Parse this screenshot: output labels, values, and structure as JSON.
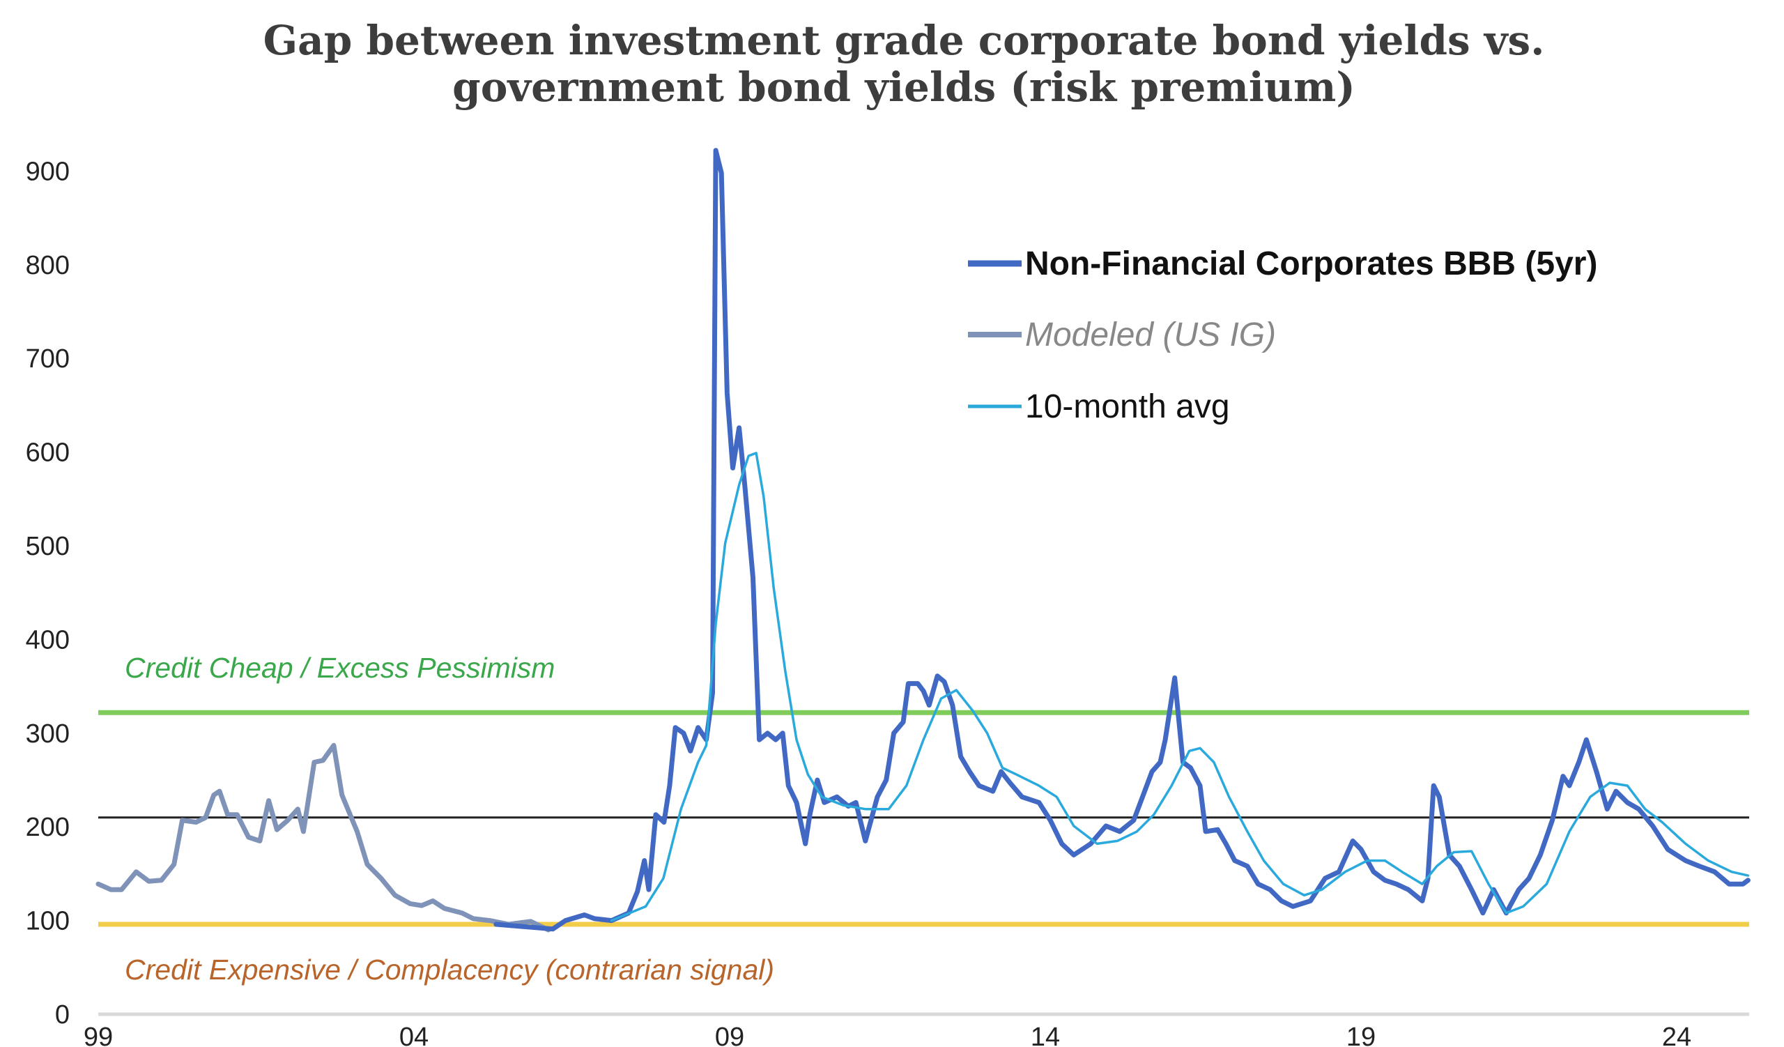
{
  "chart_data": {
    "type": "line",
    "title": [
      "Gap between investment grade corporate bond yields vs.",
      "government bond yields (risk premium)"
    ],
    "xlabel": "",
    "ylabel": "",
    "xlim": [
      1999,
      2025.15
    ],
    "ylim": [
      0,
      950
    ],
    "y_ticks": [
      0,
      100,
      200,
      300,
      400,
      500,
      600,
      700,
      800,
      900
    ],
    "x_ticks": [
      {
        "value": 1999,
        "label": "99"
      },
      {
        "value": 2004,
        "label": "04"
      },
      {
        "value": 2009,
        "label": "09"
      },
      {
        "value": 2014,
        "label": "14"
      },
      {
        "value": 2019,
        "label": "19"
      },
      {
        "value": 2024,
        "label": "24"
      }
    ],
    "grid": false,
    "legend_position": "top-right",
    "reference_lines": [
      {
        "name": "credit-cheap-line",
        "value": 322,
        "color": "#7fcc5a"
      },
      {
        "name": "average-line",
        "value": 210,
        "color": "#222222"
      },
      {
        "name": "credit-expensive-line",
        "value": 96,
        "color": "#f2cd4a"
      }
    ],
    "annotations": [
      {
        "text": "Credit Cheap / Excess Pessimism",
        "color": "#3aa84a"
      },
      {
        "text": "Credit Expensive / Complacency (contrarian signal)",
        "color": "#b8642a"
      }
    ],
    "series": [
      {
        "name": "Modeled (US IG)",
        "color": "#7f93b8",
        "style": "italic",
        "points": [
          [
            1999.0,
            139
          ],
          [
            1999.2,
            133
          ],
          [
            1999.37,
            133
          ],
          [
            1999.6,
            152
          ],
          [
            1999.8,
            142
          ],
          [
            2000.0,
            143
          ],
          [
            2000.2,
            160
          ],
          [
            2000.33,
            207
          ],
          [
            2000.55,
            205
          ],
          [
            2000.7,
            210
          ],
          [
            2000.83,
            234
          ],
          [
            2000.92,
            238
          ],
          [
            2001.05,
            213
          ],
          [
            2001.2,
            213
          ],
          [
            2001.38,
            189
          ],
          [
            2001.56,
            185
          ],
          [
            2001.7,
            228
          ],
          [
            2001.83,
            197
          ],
          [
            2002.0,
            207
          ],
          [
            2002.16,
            219
          ],
          [
            2002.25,
            195
          ],
          [
            2002.42,
            269
          ],
          [
            2002.56,
            271
          ],
          [
            2002.73,
            287
          ],
          [
            2002.86,
            234
          ],
          [
            2003.1,
            195
          ],
          [
            2003.26,
            160
          ],
          [
            2003.48,
            145
          ],
          [
            2003.7,
            127
          ],
          [
            2003.94,
            118
          ],
          [
            2004.12,
            116
          ],
          [
            2004.3,
            121
          ],
          [
            2004.48,
            113
          ],
          [
            2004.76,
            108
          ],
          [
            2004.94,
            102
          ],
          [
            2005.2,
            100
          ],
          [
            2005.5,
            96
          ],
          [
            2005.85,
            99
          ],
          [
            2006.13,
            90
          ]
        ]
      },
      {
        "name": "Non-Financial Corporates BBB (5yr)",
        "color": "#4169c4",
        "style": "bold",
        "points": [
          [
            2005.3,
            96
          ],
          [
            2006.2,
            91
          ],
          [
            2006.4,
            100
          ],
          [
            2006.7,
            106
          ],
          [
            2006.86,
            102
          ],
          [
            2007.13,
            100
          ],
          [
            2007.4,
            108
          ],
          [
            2007.54,
            131
          ],
          [
            2007.65,
            164
          ],
          [
            2007.72,
            133
          ],
          [
            2007.83,
            213
          ],
          [
            2007.96,
            205
          ],
          [
            2008.05,
            244
          ],
          [
            2008.14,
            306
          ],
          [
            2008.27,
            300
          ],
          [
            2008.38,
            281
          ],
          [
            2008.5,
            306
          ],
          [
            2008.63,
            293
          ],
          [
            2008.73,
            343
          ],
          [
            2008.78,
            922
          ],
          [
            2008.87,
            898
          ],
          [
            2008.96,
            663
          ],
          [
            2009.05,
            583
          ],
          [
            2009.15,
            626
          ],
          [
            2009.24,
            565
          ],
          [
            2009.37,
            466
          ],
          [
            2009.47,
            293
          ],
          [
            2009.6,
            300
          ],
          [
            2009.73,
            293
          ],
          [
            2009.84,
            300
          ],
          [
            2009.93,
            244
          ],
          [
            2010.06,
            226
          ],
          [
            2010.2,
            182
          ],
          [
            2010.27,
            213
          ],
          [
            2010.39,
            250
          ],
          [
            2010.5,
            226
          ],
          [
            2010.7,
            232
          ],
          [
            2010.88,
            222
          ],
          [
            2011.0,
            226
          ],
          [
            2011.15,
            185
          ],
          [
            2011.34,
            232
          ],
          [
            2011.48,
            250
          ],
          [
            2011.6,
            300
          ],
          [
            2011.75,
            312
          ],
          [
            2011.83,
            353
          ],
          [
            2011.98,
            353
          ],
          [
            2012.07,
            345
          ],
          [
            2012.16,
            330
          ],
          [
            2012.29,
            361
          ],
          [
            2012.4,
            355
          ],
          [
            2012.53,
            330
          ],
          [
            2012.66,
            275
          ],
          [
            2012.8,
            259
          ],
          [
            2012.95,
            244
          ],
          [
            2013.17,
            238
          ],
          [
            2013.3,
            259
          ],
          [
            2013.44,
            247
          ],
          [
            2013.63,
            232
          ],
          [
            2013.9,
            226
          ],
          [
            2014.08,
            207
          ],
          [
            2014.26,
            182
          ],
          [
            2014.45,
            170
          ],
          [
            2014.72,
            182
          ],
          [
            2014.96,
            201
          ],
          [
            2015.18,
            195
          ],
          [
            2015.4,
            207
          ],
          [
            2015.54,
            232
          ],
          [
            2015.69,
            259
          ],
          [
            2015.82,
            269
          ],
          [
            2015.9,
            293
          ],
          [
            2016.05,
            359
          ],
          [
            2016.18,
            269
          ],
          [
            2016.3,
            263
          ],
          [
            2016.45,
            244
          ],
          [
            2016.54,
            195
          ],
          [
            2016.73,
            197
          ],
          [
            2016.86,
            182
          ],
          [
            2017.0,
            164
          ],
          [
            2017.2,
            158
          ],
          [
            2017.37,
            139
          ],
          [
            2017.56,
            133
          ],
          [
            2017.74,
            121
          ],
          [
            2017.92,
            115
          ],
          [
            2018.2,
            121
          ],
          [
            2018.43,
            145
          ],
          [
            2018.65,
            152
          ],
          [
            2018.87,
            185
          ],
          [
            2019.0,
            176
          ],
          [
            2019.2,
            152
          ],
          [
            2019.38,
            143
          ],
          [
            2019.56,
            139
          ],
          [
            2019.75,
            133
          ],
          [
            2019.97,
            121
          ],
          [
            2020.06,
            145
          ],
          [
            2020.15,
            244
          ],
          [
            2020.24,
            232
          ],
          [
            2020.4,
            170
          ],
          [
            2020.56,
            158
          ],
          [
            2020.75,
            133
          ],
          [
            2020.93,
            108
          ],
          [
            2021.1,
            133
          ],
          [
            2021.3,
            108
          ],
          [
            2021.5,
            133
          ],
          [
            2021.66,
            145
          ],
          [
            2021.84,
            170
          ],
          [
            2022.03,
            207
          ],
          [
            2022.2,
            254
          ],
          [
            2022.3,
            244
          ],
          [
            2022.45,
            269
          ],
          [
            2022.57,
            293
          ],
          [
            2022.73,
            259
          ],
          [
            2022.9,
            219
          ],
          [
            2023.04,
            238
          ],
          [
            2023.22,
            226
          ],
          [
            2023.4,
            219
          ],
          [
            2023.62,
            201
          ],
          [
            2023.86,
            176
          ],
          [
            2024.14,
            164
          ],
          [
            2024.36,
            158
          ],
          [
            2024.6,
            152
          ],
          [
            2024.83,
            139
          ],
          [
            2025.05,
            139
          ],
          [
            2025.13,
            143
          ]
        ]
      },
      {
        "name": "10-month avg",
        "color": "#2aa9dc",
        "style": "normal",
        "points": [
          [
            2007.13,
            100
          ],
          [
            2007.67,
            115
          ],
          [
            2007.95,
            145
          ],
          [
            2008.23,
            219
          ],
          [
            2008.5,
            269
          ],
          [
            2008.63,
            287
          ],
          [
            2008.78,
            417
          ],
          [
            2008.93,
            503
          ],
          [
            2009.15,
            565
          ],
          [
            2009.3,
            596
          ],
          [
            2009.42,
            599
          ],
          [
            2009.54,
            552
          ],
          [
            2009.7,
            454
          ],
          [
            2009.88,
            367
          ],
          [
            2010.06,
            293
          ],
          [
            2010.24,
            256
          ],
          [
            2010.46,
            232
          ],
          [
            2010.8,
            223
          ],
          [
            2011.15,
            219
          ],
          [
            2011.52,
            219
          ],
          [
            2011.8,
            244
          ],
          [
            2012.07,
            293
          ],
          [
            2012.35,
            337
          ],
          [
            2012.59,
            346
          ],
          [
            2012.85,
            324
          ],
          [
            2013.08,
            300
          ],
          [
            2013.32,
            263
          ],
          [
            2013.54,
            256
          ],
          [
            2013.9,
            244
          ],
          [
            2014.18,
            232
          ],
          [
            2014.45,
            201
          ],
          [
            2014.82,
            182
          ],
          [
            2015.14,
            185
          ],
          [
            2015.45,
            195
          ],
          [
            2015.72,
            213
          ],
          [
            2016.0,
            244
          ],
          [
            2016.28,
            281
          ],
          [
            2016.45,
            284
          ],
          [
            2016.67,
            269
          ],
          [
            2016.91,
            232
          ],
          [
            2017.2,
            195
          ],
          [
            2017.46,
            164
          ],
          [
            2017.77,
            139
          ],
          [
            2018.1,
            127
          ],
          [
            2018.38,
            133
          ],
          [
            2018.75,
            152
          ],
          [
            2019.1,
            164
          ],
          [
            2019.38,
            164
          ],
          [
            2019.65,
            152
          ],
          [
            2019.97,
            139
          ],
          [
            2020.2,
            158
          ],
          [
            2020.47,
            173
          ],
          [
            2020.75,
            174
          ],
          [
            2021.02,
            139
          ],
          [
            2021.3,
            108
          ],
          [
            2021.57,
            115
          ],
          [
            2021.94,
            139
          ],
          [
            2022.3,
            195
          ],
          [
            2022.63,
            232
          ],
          [
            2022.94,
            247
          ],
          [
            2023.22,
            244
          ],
          [
            2023.5,
            219
          ],
          [
            2023.77,
            205
          ],
          [
            2024.14,
            182
          ],
          [
            2024.5,
            164
          ],
          [
            2024.87,
            152
          ],
          [
            2025.13,
            148
          ]
        ]
      }
    ]
  }
}
